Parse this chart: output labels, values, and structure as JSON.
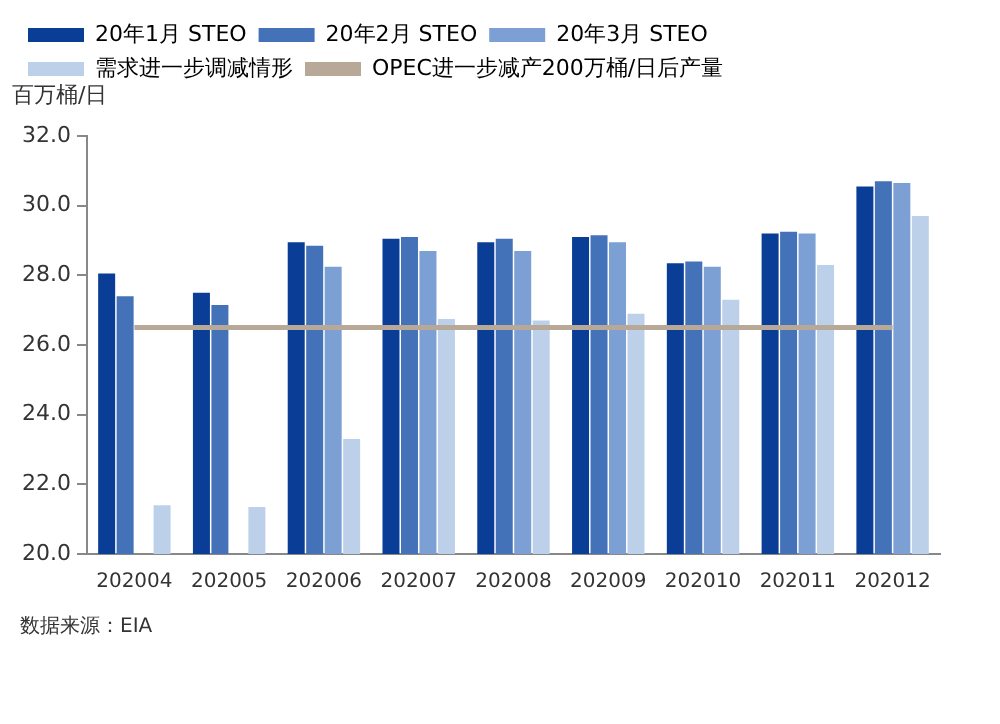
{
  "chart_data": {
    "type": "bar",
    "ylabel": "百万桶/日",
    "categories": [
      "202004",
      "202005",
      "202006",
      "202007",
      "202008",
      "202009",
      "202010",
      "202011",
      "202012"
    ],
    "series": [
      {
        "name": "20年1月 STEO",
        "color": "#0a3e96",
        "values": [
          28.05,
          27.5,
          28.95,
          29.05,
          28.95,
          29.1,
          28.35,
          29.2,
          30.55
        ]
      },
      {
        "name": "20年2月 STEO",
        "color": "#4472b8",
        "values": [
          27.4,
          27.15,
          28.85,
          29.1,
          29.05,
          29.15,
          28.4,
          29.25,
          30.7
        ]
      },
      {
        "name": "20年3月 STEO",
        "color": "#7da0d4",
        "values": [
          null,
          null,
          28.25,
          28.7,
          28.7,
          28.95,
          28.25,
          29.2,
          30.65
        ]
      },
      {
        "name": "需求进一步调减情形",
        "color": "#bdd0e9",
        "values": [
          21.4,
          21.35,
          23.3,
          26.75,
          26.7,
          26.9,
          27.3,
          28.3,
          29.7
        ]
      },
      {
        "name": "OPEC进一步减产200万桶/日后产量",
        "type": "line",
        "color": "#b8a898",
        "values": [
          26.5,
          26.5,
          26.5,
          26.5,
          26.5,
          26.5,
          26.5,
          26.5,
          26.5
        ]
      }
    ],
    "ylim": [
      20,
      32
    ],
    "yticks": [
      {
        "value": 20,
        "label": "20.0"
      },
      {
        "value": 22,
        "label": "22.0"
      },
      {
        "value": 24,
        "label": "24.0"
      },
      {
        "value": 26,
        "label": "26.0"
      },
      {
        "value": 28,
        "label": "28.0"
      },
      {
        "value": 30,
        "label": "30.0"
      },
      {
        "value": 32,
        "label": "32.0"
      }
    ],
    "grid": false,
    "legend": "top",
    "marker": "none",
    "annotations": [
      "数据来源：EIA"
    ]
  }
}
